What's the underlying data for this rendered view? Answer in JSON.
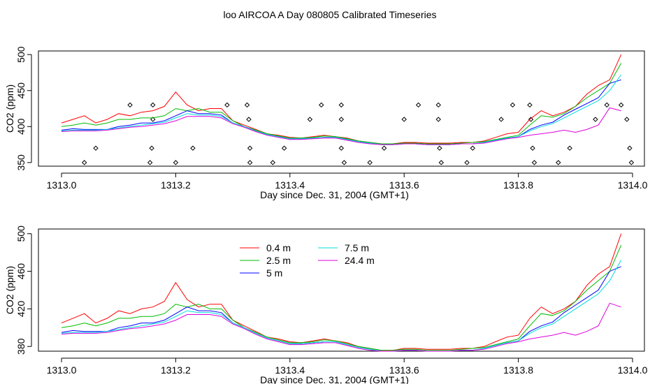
{
  "title": "loo AIRCOA A  Day 080805  Calibrated Timeseries",
  "colors": {
    "0.4 m": "#ff0000",
    "2.5 m": "#00bb00",
    "5 m": "#0000ff",
    "7.5 m": "#00dddd",
    "24.4 m": "#dd00dd",
    "flags": "#000000"
  },
  "chart_data": [
    {
      "type": "line",
      "title": "",
      "xlabel": "Day since Dec. 31, 2004 (GMT+1)",
      "ylabel": "CO2 (ppm)",
      "xlim": [
        1313.0,
        1314.0
      ],
      "ylim": [
        345,
        505
      ],
      "x_ticks": [
        "1313.0",
        "1313.2",
        "1313.4",
        "1313.6",
        "1313.8",
        "1314.0"
      ],
      "y_ticks": [
        "350",
        "400",
        "450",
        "500"
      ],
      "legend": "none",
      "grid": false,
      "x": [
        1313.0,
        1313.02,
        1313.04,
        1313.06,
        1313.08,
        1313.1,
        1313.12,
        1313.14,
        1313.16,
        1313.18,
        1313.2,
        1313.22,
        1313.24,
        1313.26,
        1313.28,
        1313.3,
        1313.32,
        1313.34,
        1313.36,
        1313.38,
        1313.4,
        1313.42,
        1313.44,
        1313.46,
        1313.48,
        1313.5,
        1313.52,
        1313.54,
        1313.56,
        1313.58,
        1313.6,
        1313.62,
        1313.64,
        1313.66,
        1313.68,
        1313.7,
        1313.72,
        1313.74,
        1313.76,
        1313.78,
        1313.8,
        1313.82,
        1313.84,
        1313.86,
        1313.88,
        1313.9,
        1313.92,
        1313.94,
        1313.96,
        1313.98
      ],
      "series": [
        {
          "name": "0.4 m",
          "values": [
            405,
            410,
            415,
            405,
            410,
            418,
            415,
            420,
            422,
            428,
            448,
            430,
            422,
            425,
            425,
            408,
            402,
            396,
            390,
            388,
            385,
            384,
            386,
            388,
            386,
            384,
            380,
            378,
            376,
            376,
            378,
            378,
            377,
            377,
            377,
            378,
            378,
            380,
            385,
            390,
            392,
            410,
            422,
            415,
            420,
            428,
            445,
            457,
            465,
            500
          ]
        },
        {
          "name": "2.5 m",
          "values": [
            400,
            402,
            405,
            402,
            405,
            410,
            410,
            412,
            412,
            415,
            425,
            422,
            425,
            420,
            420,
            408,
            400,
            395,
            390,
            387,
            384,
            384,
            385,
            387,
            386,
            383,
            380,
            378,
            376,
            376,
            377,
            377,
            376,
            376,
            376,
            377,
            378,
            379,
            382,
            385,
            388,
            402,
            415,
            413,
            418,
            428,
            440,
            450,
            460,
            488
          ]
        },
        {
          "name": "5 m",
          "values": [
            395,
            397,
            396,
            396,
            396,
            400,
            402,
            405,
            405,
            408,
            415,
            422,
            418,
            418,
            416,
            405,
            400,
            394,
            389,
            386,
            383,
            383,
            384,
            385,
            385,
            382,
            379,
            377,
            375,
            375,
            376,
            376,
            375,
            375,
            375,
            376,
            376,
            378,
            381,
            384,
            386,
            396,
            402,
            406,
            416,
            424,
            432,
            440,
            460,
            465
          ]
        },
        {
          "name": "7.5 m",
          "values": [
            394,
            395,
            395,
            395,
            396,
            398,
            400,
            402,
            404,
            406,
            412,
            418,
            416,
            416,
            414,
            405,
            400,
            394,
            389,
            386,
            383,
            383,
            384,
            385,
            385,
            382,
            379,
            377,
            375,
            375,
            376,
            376,
            375,
            375,
            375,
            376,
            376,
            378,
            381,
            384,
            386,
            394,
            400,
            404,
            412,
            420,
            428,
            436,
            450,
            472
          ]
        },
        {
          "name": "24.4 m",
          "values": [
            393,
            394,
            394,
            394,
            395,
            397,
            399,
            400,
            402,
            404,
            408,
            414,
            414,
            414,
            412,
            404,
            399,
            393,
            388,
            385,
            382,
            382,
            383,
            384,
            384,
            381,
            378,
            376,
            375,
            375,
            376,
            376,
            375,
            375,
            375,
            376,
            376,
            377,
            380,
            383,
            385,
            388,
            390,
            392,
            395,
            392,
            396,
            402,
            426,
            422
          ]
        }
      ],
      "flags": {
        "x": [
          1313.04,
          1313.06,
          1313.12,
          1313.155,
          1313.158,
          1313.16,
          1313.16,
          1313.2,
          1313.23,
          1313.29,
          1313.325,
          1313.328,
          1313.33,
          1313.33,
          1313.37,
          1313.39,
          1313.435,
          1313.455,
          1313.49,
          1313.49,
          1313.49,
          1313.495,
          1313.54,
          1313.565,
          1313.6,
          1313.625,
          1313.66,
          1313.66,
          1313.662,
          1313.665,
          1313.71,
          1313.72,
          1313.77,
          1313.79,
          1313.82,
          1313.822,
          1313.825,
          1313.828,
          1313.87,
          1313.89,
          1313.935,
          1313.955,
          1313.98,
          1313.99,
          1313.995,
          1313.998
        ],
        "y": [
          350,
          370,
          430,
          350,
          370,
          410,
          430,
          350,
          370,
          430,
          430,
          410,
          370,
          350,
          350,
          370,
          410,
          430,
          430,
          410,
          370,
          350,
          350,
          370,
          410,
          430,
          430,
          410,
          370,
          350,
          350,
          370,
          410,
          430,
          430,
          410,
          370,
          350,
          350,
          370,
          410,
          430,
          430,
          410,
          370,
          350
        ]
      }
    },
    {
      "type": "line",
      "title": "",
      "xlabel": "Day since Dec. 31, 2004 (GMT+1)",
      "ylabel": "CO2 (ppm)",
      "xlim": [
        1313.0,
        1314.0
      ],
      "ylim": [
        375,
        505
      ],
      "x_ticks": [
        "1313.0",
        "1313.2",
        "1313.4",
        "1313.6",
        "1313.8",
        "1314.0"
      ],
      "y_ticks": [
        "380",
        "420",
        "460",
        "500"
      ],
      "legend": "top-left",
      "grid": false,
      "legend_entries": [
        "0.4 m",
        "2.5 m",
        "5 m",
        "7.5 m",
        "24.4 m"
      ],
      "x": [
        1313.0,
        1313.02,
        1313.04,
        1313.06,
        1313.08,
        1313.1,
        1313.12,
        1313.14,
        1313.16,
        1313.18,
        1313.2,
        1313.22,
        1313.24,
        1313.26,
        1313.28,
        1313.3,
        1313.32,
        1313.34,
        1313.36,
        1313.38,
        1313.4,
        1313.42,
        1313.44,
        1313.46,
        1313.48,
        1313.5,
        1313.52,
        1313.54,
        1313.56,
        1313.58,
        1313.6,
        1313.62,
        1313.64,
        1313.66,
        1313.68,
        1313.7,
        1313.72,
        1313.74,
        1313.76,
        1313.78,
        1313.8,
        1313.82,
        1313.84,
        1313.86,
        1313.88,
        1313.9,
        1313.92,
        1313.94,
        1313.96,
        1313.98
      ],
      "series": [
        {
          "name": "0.4 m",
          "values": [
            405,
            410,
            415,
            405,
            410,
            418,
            415,
            420,
            422,
            428,
            448,
            430,
            422,
            425,
            425,
            408,
            402,
            396,
            390,
            388,
            385,
            384,
            386,
            388,
            386,
            384,
            380,
            378,
            376,
            376,
            378,
            378,
            377,
            377,
            377,
            378,
            378,
            380,
            385,
            390,
            392,
            410,
            422,
            415,
            420,
            428,
            445,
            457,
            465,
            500
          ]
        },
        {
          "name": "2.5 m",
          "values": [
            400,
            402,
            405,
            402,
            405,
            410,
            410,
            412,
            412,
            415,
            425,
            422,
            425,
            420,
            420,
            408,
            400,
            395,
            390,
            387,
            384,
            384,
            385,
            387,
            386,
            383,
            380,
            378,
            376,
            376,
            377,
            377,
            376,
            376,
            376,
            377,
            378,
            379,
            382,
            385,
            388,
            402,
            415,
            413,
            418,
            428,
            440,
            450,
            460,
            488
          ]
        },
        {
          "name": "5 m",
          "values": [
            395,
            397,
            396,
            396,
            396,
            400,
            402,
            405,
            405,
            408,
            415,
            422,
            418,
            418,
            416,
            405,
            400,
            394,
            389,
            386,
            383,
            383,
            384,
            385,
            385,
            382,
            379,
            377,
            375,
            375,
            376,
            376,
            375,
            375,
            375,
            376,
            376,
            378,
            381,
            384,
            386,
            396,
            402,
            406,
            416,
            424,
            432,
            440,
            460,
            465
          ]
        },
        {
          "name": "7.5 m",
          "values": [
            394,
            395,
            395,
            395,
            396,
            398,
            400,
            402,
            404,
            406,
            412,
            418,
            416,
            416,
            414,
            405,
            400,
            394,
            389,
            386,
            383,
            383,
            384,
            385,
            385,
            382,
            379,
            377,
            375,
            375,
            376,
            376,
            375,
            375,
            375,
            376,
            376,
            378,
            381,
            384,
            386,
            394,
            400,
            404,
            412,
            420,
            428,
            436,
            450,
            472
          ]
        },
        {
          "name": "24.4 m",
          "values": [
            393,
            394,
            394,
            394,
            395,
            397,
            399,
            400,
            402,
            404,
            408,
            414,
            414,
            414,
            412,
            404,
            399,
            393,
            388,
            385,
            382,
            382,
            383,
            384,
            384,
            381,
            378,
            376,
            375,
            375,
            376,
            376,
            375,
            375,
            375,
            376,
            376,
            377,
            380,
            383,
            385,
            388,
            390,
            392,
            395,
            392,
            396,
            402,
            426,
            422
          ]
        }
      ]
    }
  ]
}
